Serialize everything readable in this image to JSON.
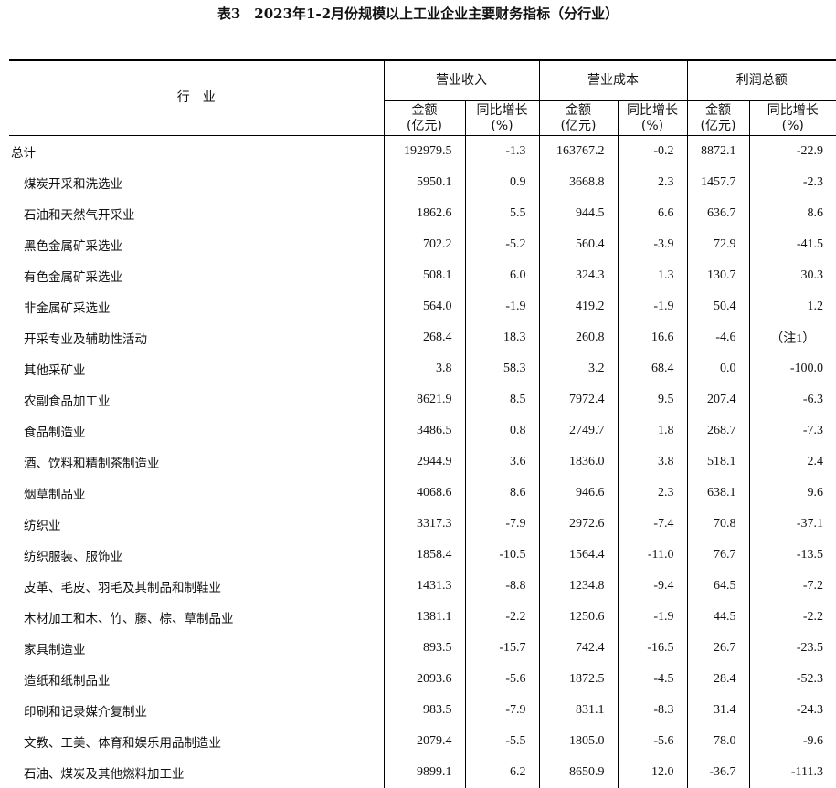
{
  "title": "表3　2023年1-2月份规模以上工业企业主要财务指标（分行业）",
  "header": {
    "industry": "行　业",
    "groups": [
      "营业收入",
      "营业成本",
      "利润总额"
    ],
    "amount": "金额",
    "amount_unit": "(亿元)",
    "growth": "同比增长",
    "growth_unit": "(%)"
  },
  "rows": [
    {
      "name": "总计",
      "v": [
        "192979.5",
        "-1.3",
        "163767.2",
        "-0.2",
        "8872.1",
        "-22.9"
      ]
    },
    {
      "name": "煤炭开采和洗选业",
      "v": [
        "5950.1",
        "0.9",
        "3668.8",
        "2.3",
        "1457.7",
        "-2.3"
      ]
    },
    {
      "name": "石油和天然气开采业",
      "v": [
        "1862.6",
        "5.5",
        "944.5",
        "6.6",
        "636.7",
        "8.6"
      ]
    },
    {
      "name": "黑色金属矿采选业",
      "v": [
        "702.2",
        "-5.2",
        "560.4",
        "-3.9",
        "72.9",
        "-41.5"
      ]
    },
    {
      "name": "有色金属矿采选业",
      "v": [
        "508.1",
        "6.0",
        "324.3",
        "1.3",
        "130.7",
        "30.3"
      ]
    },
    {
      "name": "非金属矿采选业",
      "v": [
        "564.0",
        "-1.9",
        "419.2",
        "-1.9",
        "50.4",
        "1.2"
      ]
    },
    {
      "name": "开采专业及辅助性活动",
      "v": [
        "268.4",
        "18.3",
        "260.8",
        "16.6",
        "-4.6",
        "（注1）"
      ]
    },
    {
      "name": "其他采矿业",
      "v": [
        "3.8",
        "58.3",
        "3.2",
        "68.4",
        "0.0",
        "-100.0"
      ]
    },
    {
      "name": "农副食品加工业",
      "v": [
        "8621.9",
        "8.5",
        "7972.4",
        "9.5",
        "207.4",
        "-6.3"
      ]
    },
    {
      "name": "食品制造业",
      "v": [
        "3486.5",
        "0.8",
        "2749.7",
        "1.8",
        "268.7",
        "-7.3"
      ]
    },
    {
      "name": "酒、饮料和精制茶制造业",
      "v": [
        "2944.9",
        "3.6",
        "1836.0",
        "3.8",
        "518.1",
        "2.4"
      ]
    },
    {
      "name": "烟草制品业",
      "v": [
        "4068.6",
        "8.6",
        "946.6",
        "2.3",
        "638.1",
        "9.6"
      ]
    },
    {
      "name": "纺织业",
      "v": [
        "3317.3",
        "-7.9",
        "2972.6",
        "-7.4",
        "70.8",
        "-37.1"
      ]
    },
    {
      "name": "纺织服装、服饰业",
      "v": [
        "1858.4",
        "-10.5",
        "1564.4",
        "-11.0",
        "76.7",
        "-13.5"
      ]
    },
    {
      "name": "皮革、毛皮、羽毛及其制品和制鞋业",
      "v": [
        "1431.3",
        "-8.8",
        "1234.8",
        "-9.4",
        "64.5",
        "-7.2"
      ]
    },
    {
      "name": "木材加工和木、竹、藤、棕、草制品业",
      "v": [
        "1381.1",
        "-2.2",
        "1250.6",
        "-1.9",
        "44.5",
        "-2.2"
      ]
    },
    {
      "name": "家具制造业",
      "v": [
        "893.5",
        "-15.7",
        "742.4",
        "-16.5",
        "26.7",
        "-23.5"
      ]
    },
    {
      "name": "造纸和纸制品业",
      "v": [
        "2093.6",
        "-5.6",
        "1872.5",
        "-4.5",
        "28.4",
        "-52.3"
      ]
    },
    {
      "name": "印刷和记录媒介复制业",
      "v": [
        "983.5",
        "-7.9",
        "831.1",
        "-8.3",
        "31.4",
        "-24.3"
      ]
    },
    {
      "name": "文教、工美、体育和娱乐用品制造业",
      "v": [
        "2079.4",
        "-5.5",
        "1805.0",
        "-5.6",
        "78.0",
        "-9.6"
      ]
    },
    {
      "name": "石油、煤炭及其他燃料加工业",
      "v": [
        "9899.1",
        "6.2",
        "8650.9",
        "12.0",
        "-36.7",
        "-111.3"
      ]
    }
  ]
}
